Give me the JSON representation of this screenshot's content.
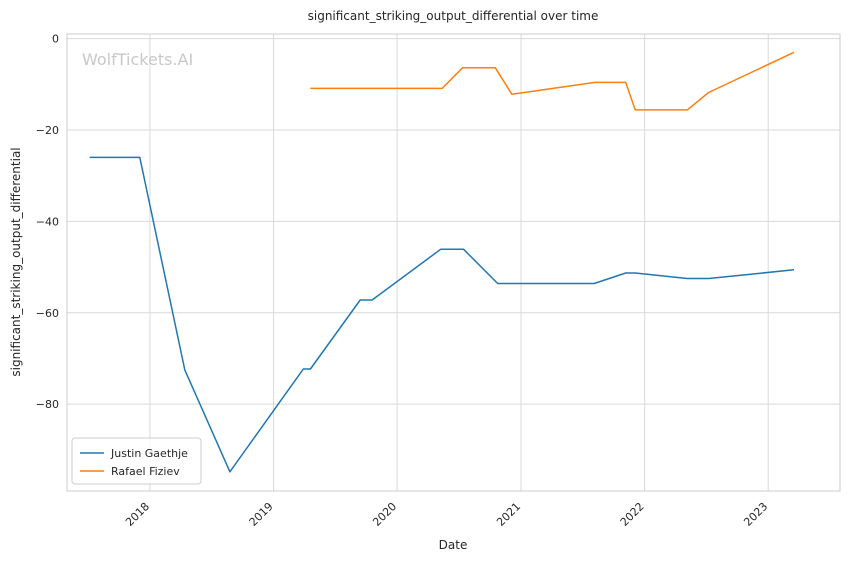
{
  "chart_data": {
    "type": "line",
    "title": "significant_striking_output_differential over time",
    "xlabel": "Date",
    "ylabel": "significant_striking_output_differential",
    "watermark": "WolfTickets.AI",
    "x_ticks": [
      "2018",
      "2019",
      "2020",
      "2021",
      "2022",
      "2023"
    ],
    "y_ticks": [
      0,
      -20,
      -40,
      -60,
      -80
    ],
    "xlim": [
      "2017-05-01",
      "2023-08-01"
    ],
    "ylim": [
      -99,
      1
    ],
    "grid": true,
    "legend_position": "lower-left",
    "series": [
      {
        "name": "Justin Gaethje",
        "color": "#1f77b4",
        "points": [
          [
            "2017-07-07",
            -26.0
          ],
          [
            "2017-12-02",
            -26.0
          ],
          [
            "2018-04-14",
            -72.5
          ],
          [
            "2018-08-25",
            -94.8
          ],
          [
            "2019-03-30",
            -72.3
          ],
          [
            "2019-04-20",
            -72.3
          ],
          [
            "2019-09-14",
            -57.2
          ],
          [
            "2019-10-19",
            -57.2
          ],
          [
            "2020-05-09",
            -46.1
          ],
          [
            "2020-07-15",
            -46.1
          ],
          [
            "2020-10-24",
            -53.6
          ],
          [
            "2021-08-05",
            -53.6
          ],
          [
            "2021-11-06",
            -51.3
          ],
          [
            "2021-12-04",
            -51.3
          ],
          [
            "2022-05-07",
            -52.5
          ],
          [
            "2022-07-09",
            -52.5
          ],
          [
            "2023-03-18",
            -50.6
          ]
        ]
      },
      {
        "name": "Rafael Fiziev",
        "color": "#ff7f0e",
        "points": [
          [
            "2019-04-20",
            -10.9
          ],
          [
            "2020-05-13",
            -10.9
          ],
          [
            "2020-07-12",
            -6.4
          ],
          [
            "2020-10-17",
            -6.4
          ],
          [
            "2020-12-05",
            -12.2
          ],
          [
            "2021-08-07",
            -9.6
          ],
          [
            "2021-11-06",
            -9.6
          ],
          [
            "2021-12-04",
            -15.6
          ],
          [
            "2022-05-07",
            -15.6
          ],
          [
            "2022-07-09",
            -11.8
          ],
          [
            "2023-03-18",
            -3.0
          ]
        ]
      }
    ]
  }
}
